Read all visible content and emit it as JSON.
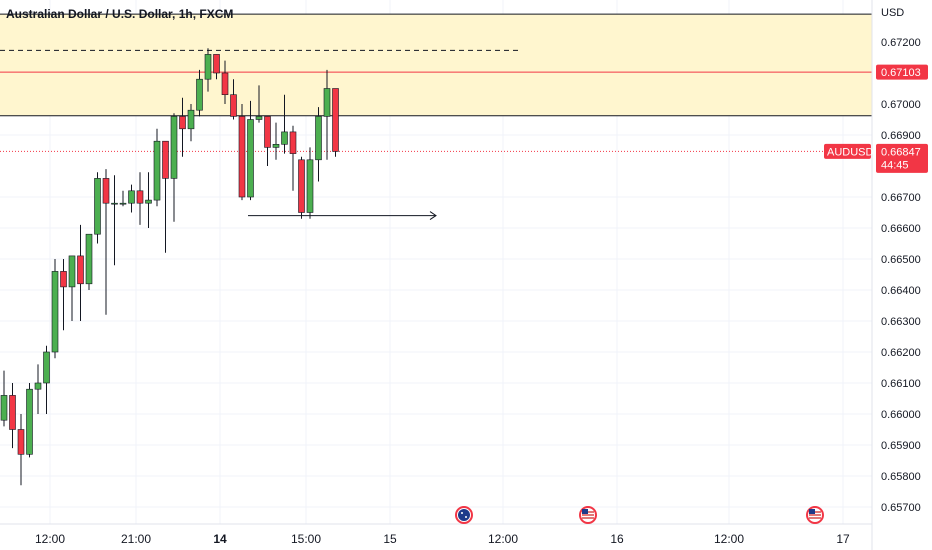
{
  "header": {
    "title": "Australian Dollar / U.S. Dollar, 1h, FXCM"
  },
  "currency_label": "USD",
  "price_tags": {
    "resistance": {
      "value": "0.67103",
      "color": "#f23645"
    },
    "symbol": "AUDUSD",
    "last_price": "0.66847",
    "countdown": "44:45",
    "color": "#f23645"
  },
  "colors": {
    "up": "#4caf50",
    "down": "#f23645",
    "zone_fill": "#fff6cf",
    "grid": "#f0f3fa"
  },
  "events": [
    {
      "x": "15 04:00",
      "icon": "australia-flag-icon"
    },
    {
      "x": "15 20:00",
      "icon": "usa-flag-icon"
    },
    {
      "x": "16 24:00",
      "icon": "usa-flag-icon"
    }
  ],
  "chart_data": {
    "type": "candlestick",
    "title": "Australian Dollar / U.S. Dollar, 1h, FXCM",
    "symbol": "AUDUSD",
    "timeframe": "1h",
    "y_axis_ticks": [
      "0.67200",
      "0.67000",
      "0.66900",
      "0.66700",
      "0.66600",
      "0.66500",
      "0.66400",
      "0.66300",
      "0.66200",
      "0.66100",
      "0.66000",
      "0.65900",
      "0.65800",
      "0.65700"
    ],
    "x_axis_ticks": [
      "12:00",
      "21:00",
      "14",
      "15:00",
      "15",
      "12:00",
      "16",
      "12:00",
      "17"
    ],
    "ylim": [
      0.6565,
      0.673
    ],
    "zone": {
      "top": 0.6729,
      "bottom": 0.66962
    },
    "resistance_line": 0.67103,
    "dashed_high_line": 0.67173,
    "last_price_line": 0.66847,
    "arrow_level": 0.6664,
    "candles": [
      {
        "o": 0.6598,
        "h": 0.6614,
        "l": 0.6596,
        "c": 0.6606
      },
      {
        "o": 0.6606,
        "h": 0.661,
        "l": 0.6589,
        "c": 0.6595
      },
      {
        "o": 0.6595,
        "h": 0.66,
        "l": 0.6577,
        "c": 0.6587
      },
      {
        "o": 0.6587,
        "h": 0.661,
        "l": 0.6586,
        "c": 0.6608
      },
      {
        "o": 0.6608,
        "h": 0.6616,
        "l": 0.66,
        "c": 0.661
      },
      {
        "o": 0.661,
        "h": 0.6622,
        "l": 0.66,
        "c": 0.662
      },
      {
        "o": 0.662,
        "h": 0.665,
        "l": 0.6618,
        "c": 0.6646
      },
      {
        "o": 0.6646,
        "h": 0.665,
        "l": 0.6627,
        "c": 0.6641
      },
      {
        "o": 0.6641,
        "h": 0.6651,
        "l": 0.663,
        "c": 0.6651
      },
      {
        "o": 0.6651,
        "h": 0.6661,
        "l": 0.663,
        "c": 0.6642
      },
      {
        "o": 0.6642,
        "h": 0.6658,
        "l": 0.664,
        "c": 0.6658
      },
      {
        "o": 0.6658,
        "h": 0.6678,
        "l": 0.6655,
        "c": 0.6676
      },
      {
        "o": 0.6676,
        "h": 0.6679,
        "l": 0.6632,
        "c": 0.6668
      },
      {
        "o": 0.6668,
        "h": 0.6677,
        "l": 0.6648,
        "c": 0.6668
      },
      {
        "o": 0.6668,
        "h": 0.6672,
        "l": 0.6667,
        "c": 0.6668
      },
      {
        "o": 0.6668,
        "h": 0.6674,
        "l": 0.6665,
        "c": 0.6672
      },
      {
        "o": 0.6672,
        "h": 0.6678,
        "l": 0.6661,
        "c": 0.6668
      },
      {
        "o": 0.6668,
        "h": 0.6678,
        "l": 0.666,
        "c": 0.6669
      },
      {
        "o": 0.6669,
        "h": 0.6692,
        "l": 0.6667,
        "c": 0.6688
      },
      {
        "o": 0.6688,
        "h": 0.6688,
        "l": 0.6652,
        "c": 0.6676
      },
      {
        "o": 0.6676,
        "h": 0.6697,
        "l": 0.6662,
        "c": 0.6696
      },
      {
        "o": 0.6696,
        "h": 0.6702,
        "l": 0.6683,
        "c": 0.6692
      },
      {
        "o": 0.6692,
        "h": 0.67,
        "l": 0.6688,
        "c": 0.6698
      },
      {
        "o": 0.6698,
        "h": 0.6711,
        "l": 0.6696,
        "c": 0.6708
      },
      {
        "o": 0.6708,
        "h": 0.6718,
        "l": 0.6704,
        "c": 0.6716
      },
      {
        "o": 0.6716,
        "h": 0.6716,
        "l": 0.6708,
        "c": 0.671
      },
      {
        "o": 0.671,
        "h": 0.6714,
        "l": 0.67,
        "c": 0.6703
      },
      {
        "o": 0.6703,
        "h": 0.6708,
        "l": 0.6695,
        "c": 0.6696
      },
      {
        "o": 0.6696,
        "h": 0.67,
        "l": 0.6669,
        "c": 0.667
      },
      {
        "o": 0.667,
        "h": 0.6701,
        "l": 0.6669,
        "c": 0.6695
      },
      {
        "o": 0.6695,
        "h": 0.6706,
        "l": 0.6694,
        "c": 0.6696
      },
      {
        "o": 0.6696,
        "h": 0.6696,
        "l": 0.668,
        "c": 0.6686
      },
      {
        "o": 0.6686,
        "h": 0.6694,
        "l": 0.6682,
        "c": 0.6687
      },
      {
        "o": 0.6687,
        "h": 0.6703,
        "l": 0.6684,
        "c": 0.6691
      },
      {
        "o": 0.6691,
        "h": 0.6693,
        "l": 0.6672,
        "c": 0.6684
      },
      {
        "o": 0.6682,
        "h": 0.6683,
        "l": 0.6663,
        "c": 0.6665
      },
      {
        "o": 0.6665,
        "h": 0.6686,
        "l": 0.6663,
        "c": 0.6682
      },
      {
        "o": 0.6682,
        "h": 0.6699,
        "l": 0.6675,
        "c": 0.6696
      },
      {
        "o": 0.6696,
        "h": 0.6711,
        "l": 0.6682,
        "c": 0.6705
      },
      {
        "o": 0.6705,
        "h": 0.6705,
        "l": 0.6683,
        "c": 0.66847
      }
    ]
  }
}
